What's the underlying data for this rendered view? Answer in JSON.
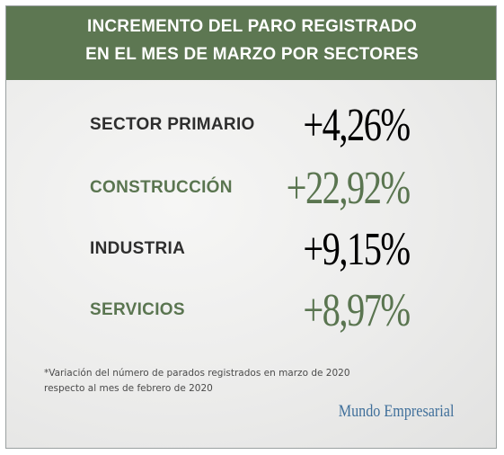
{
  "header": {
    "line1": "INCREMENTO DEL PARO REGISTRADO",
    "line2": "EN EL MES DE MARZO POR SECTORES"
  },
  "rows": [
    {
      "label": "SECTOR PRIMARIO",
      "value": "+4,26%"
    },
    {
      "label": "CONSTRUCCIÓN",
      "value": "+22,92%"
    },
    {
      "label": "INDUSTRIA",
      "value": "+9,15%"
    },
    {
      "label": "SERVICIOS",
      "value": "+8,97%"
    }
  ],
  "footnote": {
    "line1": "*Variación del número de parados registrados en marzo de 2020",
    "line2": "respecto al mes de febrero de 2020"
  },
  "brand": "Mundo Empresarial",
  "colors": {
    "header_bg": "#5d7752",
    "accent_green": "#5a7550",
    "dark_text": "#2e2e2e",
    "brand_blue": "#3f6f9a"
  }
}
